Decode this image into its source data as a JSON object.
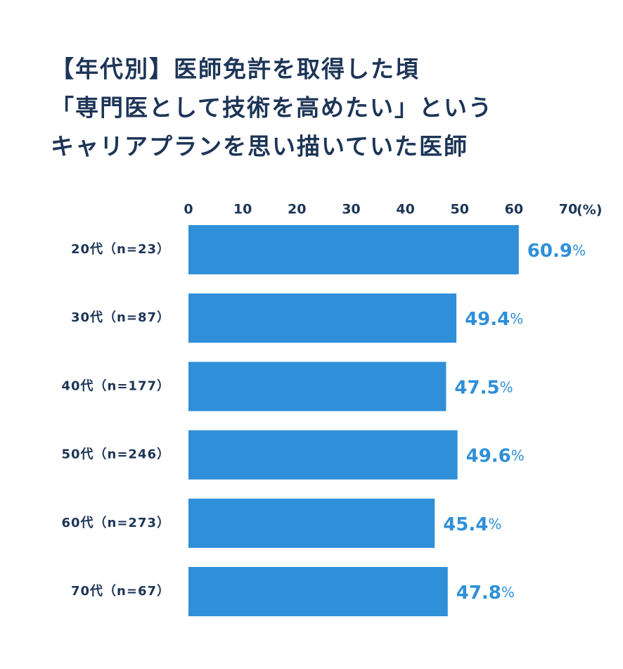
{
  "chart_data": {
    "type": "bar",
    "orientation": "horizontal",
    "title": [
      "【年代別】医師免許を取得した頃",
      "「専門医として技術を高めたい」という",
      "キャリアプランを思い描いていた医師"
    ],
    "categories": [
      "20代（n=23）",
      "30代（n=87）",
      "40代（n=177）",
      "50代（n=246）",
      "60代（n=273）",
      "70代（n=67）"
    ],
    "values": [
      60.9,
      49.4,
      47.5,
      49.6,
      45.4,
      47.8
    ],
    "value_unit": "%",
    "color": "#2f8fd8",
    "xlim": [
      0,
      70
    ],
    "xticks": [
      0,
      10,
      20,
      30,
      40,
      50,
      60,
      70
    ],
    "x_unit": "(%)"
  }
}
